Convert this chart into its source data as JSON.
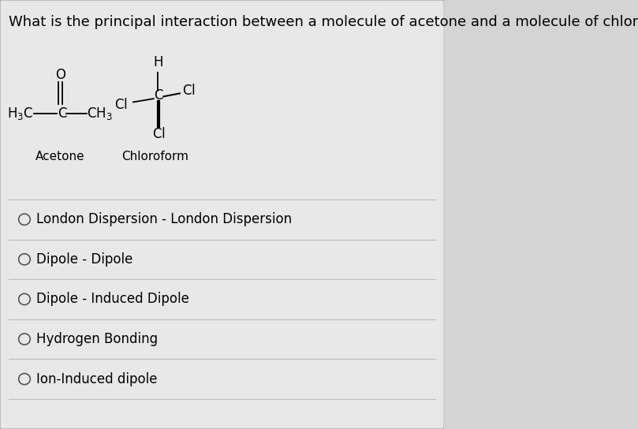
{
  "title": "What is the principal interaction between a molecule of acetone and a molecule of chloroform?",
  "title_fontsize": 13,
  "background_color": "#d4d4d4",
  "card_color": "#e8e8e8",
  "options": [
    "London Dispersion - London Dispersion",
    "Dipole - Dipole",
    "Dipole - Induced Dipole",
    "Hydrogen Bonding",
    "Ion-Induced dipole"
  ],
  "option_fontsize": 12,
  "acetone_label": "Acetone",
  "chloroform_label": "Chloroform",
  "sep_color": "#bbbbbb",
  "circle_color": "#555555",
  "text_color": "black"
}
